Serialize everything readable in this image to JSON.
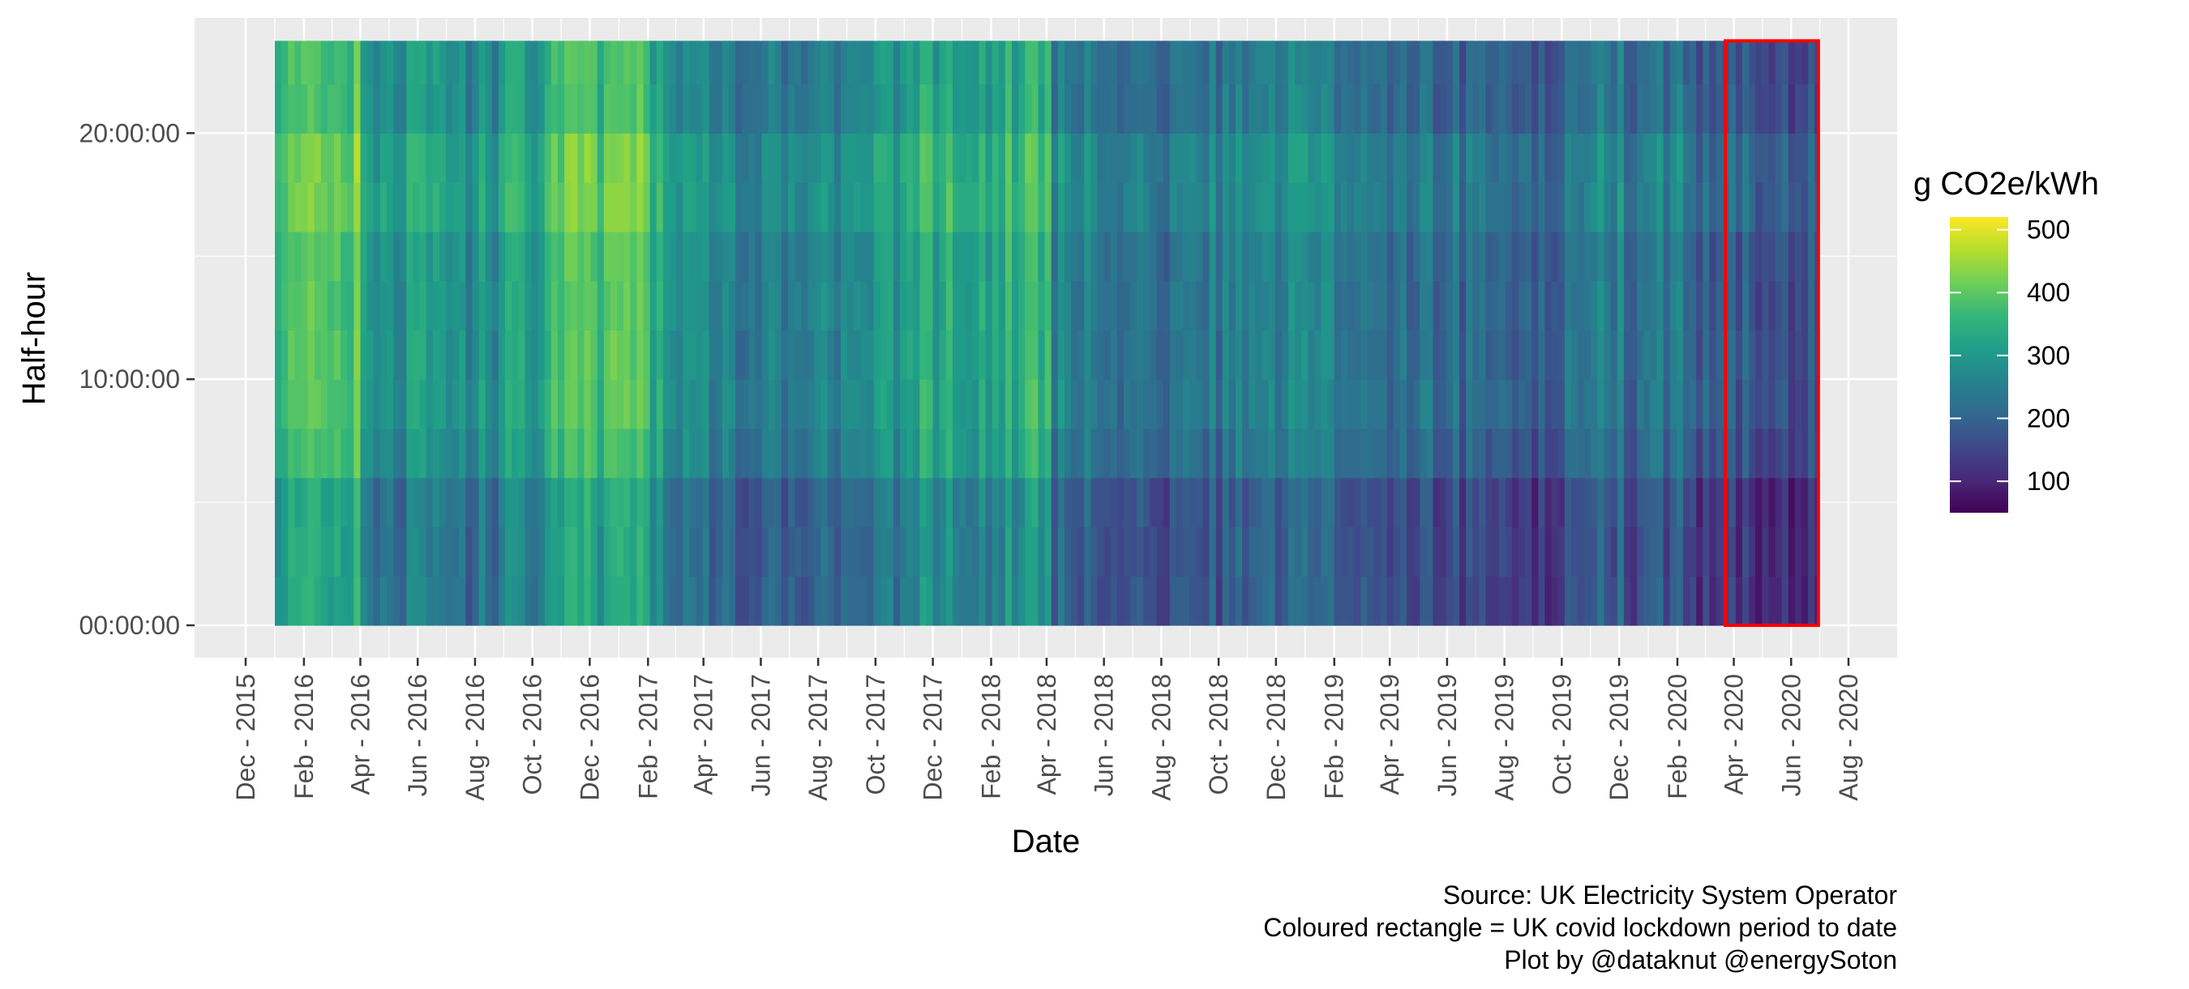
{
  "chart_data": {
    "type": "heatmap",
    "xlabel": "Date",
    "ylabel": "Half-hour",
    "x_range": [
      "2015-12-01",
      "2020-08-01"
    ],
    "data_x_range": [
      "2016-01-01",
      "2020-06-30"
    ],
    "x_ticks": [
      "Dec - 2015",
      "Feb - 2016",
      "Apr - 2016",
      "Jun - 2016",
      "Aug - 2016",
      "Oct - 2016",
      "Dec - 2016",
      "Feb - 2017",
      "Apr - 2017",
      "Jun - 2017",
      "Aug - 2017",
      "Oct - 2017",
      "Dec - 2017",
      "Feb - 2018",
      "Apr - 2018",
      "Jun - 2018",
      "Aug - 2018",
      "Oct - 2018",
      "Dec - 2018",
      "Feb - 2019",
      "Apr - 2019",
      "Jun - 2019",
      "Aug - 2019",
      "Oct - 2019",
      "Dec - 2019",
      "Feb - 2020",
      "Apr - 2020",
      "Jun - 2020",
      "Aug - 2020"
    ],
    "y_ticks": [
      "00:00:00",
      "10:00:00",
      "20:00:00"
    ],
    "y_range": [
      "00:00:00",
      "23:30:00"
    ],
    "grid": true,
    "legend": {
      "title": "g CO2e/kWh",
      "position": "right",
      "labels": [
        "500",
        "400",
        "300",
        "200",
        "100"
      ],
      "scale_range": [
        50,
        520
      ],
      "palette": "viridis",
      "colors": [
        "#440154",
        "#482878",
        "#3e4989",
        "#31688e",
        "#26828e",
        "#1f9e89",
        "#35b779",
        "#6ece58",
        "#b5de2b",
        "#fde725"
      ]
    },
    "highlight": {
      "start": "2020-03-23",
      "end": "2020-06-30",
      "color": "#ff0000"
    },
    "monthly_mean": [
      {
        "month": "2016-01",
        "value": 370
      },
      {
        "month": "2016-02",
        "value": 400
      },
      {
        "month": "2016-03",
        "value": 380
      },
      {
        "month": "2016-04",
        "value": 270
      },
      {
        "month": "2016-05",
        "value": 280
      },
      {
        "month": "2016-06",
        "value": 275
      },
      {
        "month": "2016-07",
        "value": 260
      },
      {
        "month": "2016-08",
        "value": 270
      },
      {
        "month": "2016-09",
        "value": 300
      },
      {
        "month": "2016-10",
        "value": 330
      },
      {
        "month": "2016-11",
        "value": 360
      },
      {
        "month": "2016-12",
        "value": 360
      },
      {
        "month": "2017-01",
        "value": 380
      },
      {
        "month": "2017-02",
        "value": 300
      },
      {
        "month": "2017-03",
        "value": 270
      },
      {
        "month": "2017-04",
        "value": 250
      },
      {
        "month": "2017-05",
        "value": 240
      },
      {
        "month": "2017-06",
        "value": 230
      },
      {
        "month": "2017-07",
        "value": 235
      },
      {
        "month": "2017-08",
        "value": 240
      },
      {
        "month": "2017-09",
        "value": 260
      },
      {
        "month": "2017-10",
        "value": 290
      },
      {
        "month": "2017-11",
        "value": 320
      },
      {
        "month": "2017-12",
        "value": 320
      },
      {
        "month": "2018-01",
        "value": 300
      },
      {
        "month": "2018-02",
        "value": 330
      },
      {
        "month": "2018-03",
        "value": 340
      },
      {
        "month": "2018-04",
        "value": 240
      },
      {
        "month": "2018-05",
        "value": 220
      },
      {
        "month": "2018-06",
        "value": 210
      },
      {
        "month": "2018-07",
        "value": 220
      },
      {
        "month": "2018-08",
        "value": 210
      },
      {
        "month": "2018-09",
        "value": 220
      },
      {
        "month": "2018-10",
        "value": 240
      },
      {
        "month": "2018-11",
        "value": 250
      },
      {
        "month": "2018-12",
        "value": 240
      },
      {
        "month": "2019-01",
        "value": 270
      },
      {
        "month": "2019-02",
        "value": 240
      },
      {
        "month": "2019-03",
        "value": 210
      },
      {
        "month": "2019-04",
        "value": 200
      },
      {
        "month": "2019-05",
        "value": 195
      },
      {
        "month": "2019-06",
        "value": 190
      },
      {
        "month": "2019-07",
        "value": 195
      },
      {
        "month": "2019-08",
        "value": 180
      },
      {
        "month": "2019-09",
        "value": 190
      },
      {
        "month": "2019-10",
        "value": 200
      },
      {
        "month": "2019-11",
        "value": 230
      },
      {
        "month": "2019-12",
        "value": 210
      },
      {
        "month": "2020-01",
        "value": 220
      },
      {
        "month": "2020-02",
        "value": 170
      },
      {
        "month": "2020-03",
        "value": 180
      },
      {
        "month": "2020-04",
        "value": 170
      },
      {
        "month": "2020-05",
        "value": 140
      },
      {
        "month": "2020-06",
        "value": 150
      }
    ],
    "annotations": [
      "Source: UK Electricity System Operator",
      "Coloured rectangle = UK covid lockdown period to date",
      "Plot by @dataknut @energySoton"
    ]
  }
}
